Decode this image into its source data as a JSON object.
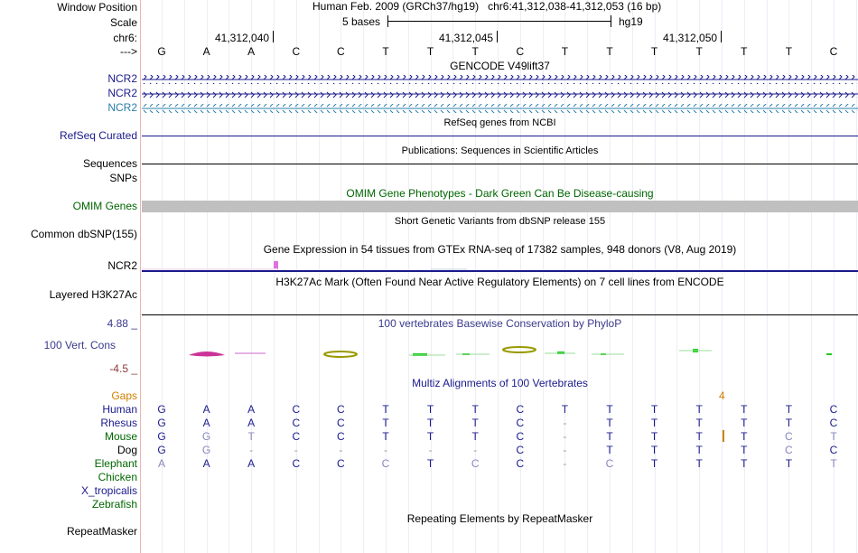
{
  "labels": {
    "window_position": "Window Position",
    "scale": "Scale",
    "chrom": "chr6:",
    "strand": "--->",
    "ncr2": "NCR2",
    "refseq_curated": "RefSeq Curated",
    "sequences": "Sequences",
    "snps": "SNPs",
    "omim_genes": "OMIM Genes",
    "common_dbsnp": "Common dbSNP(155)",
    "layered_h3k27ac": "Layered H3K27Ac",
    "phylop_max": "4.88 _",
    "vert_cons": "100 Vert. Cons",
    "phylop_min": "-4.5 _",
    "gaps": "Gaps",
    "repeatmasker": "RepeatMasker"
  },
  "header": {
    "assembly": "Human Feb. 2009 (GRCh37/hg19)",
    "position": "chr6:41,312,038-41,312,053 (16 bp)",
    "scale_text": "5 bases",
    "scale_db": "hg19",
    "ruler_ticks": [
      "41,312,040",
      "41,312,045",
      "41,312,050"
    ]
  },
  "sequence": [
    "G",
    "A",
    "A",
    "C",
    "C",
    "T",
    "T",
    "T",
    "C",
    "T",
    "T",
    "T",
    "T",
    "T",
    "T",
    "C"
  ],
  "track_titles": {
    "gencode": "GENCODE V49lift37",
    "refseq": "RefSeq genes from NCBI",
    "publications": "Publications: Sequences in Scientific Articles",
    "omim": "OMIM Gene Phenotypes - Dark Green Can Be Disease-causing",
    "dbsnp": "Short Genetic Variants from dbSNP release 155",
    "gtex": "Gene Expression in 54 tissues from GTEx RNA-seq of 17382 samples, 948 donors (V8, Aug 2019)",
    "h3k27ac": "H3K27Ac Mark (Often Found Near Active Regulatory Elements) on 7 cell lines from ENCODE",
    "phylop": "100 vertebrates Basewise Conservation by PhyloP",
    "multiz": "Multiz Alignments of 100 Vertebrates",
    "repeatmasker": "Repeating Elements by RepeatMasker"
  },
  "gaps_marker": "4",
  "species": [
    {
      "name": "Human",
      "bases": [
        "G",
        "A",
        "A",
        "C",
        "C",
        "T",
        "T",
        "T",
        "C",
        "T",
        "T",
        "T",
        "T",
        "T",
        "T",
        "C"
      ]
    },
    {
      "name": "Rhesus",
      "bases": [
        "G",
        "A",
        "A",
        "C",
        "C",
        "T",
        "T",
        "T",
        "C",
        "-",
        "T",
        "T",
        "T",
        "T",
        "T",
        "C"
      ]
    },
    {
      "name": "Mouse",
      "bases": [
        "G",
        "G",
        "T",
        "C",
        "C",
        "T",
        "T",
        "T",
        "C",
        "-",
        "T",
        "T",
        "T",
        "T",
        "C",
        "T"
      ]
    },
    {
      "name": "Dog",
      "bases": [
        "G",
        "G",
        "-",
        "-",
        "-",
        "-",
        "-",
        "-",
        "C",
        "-",
        "T",
        "T",
        "T",
        "T",
        "C",
        "C"
      ]
    },
    {
      "name": "Elephant",
      "bases": [
        "A",
        "A",
        "A",
        "C",
        "C",
        "C",
        "T",
        "C",
        "C",
        "-",
        "C",
        "T",
        "T",
        "T",
        "T",
        "T"
      ]
    },
    {
      "name": "Chicken",
      "bases": []
    },
    {
      "name": "X_tropicalis",
      "bases": []
    },
    {
      "name": "Zebrafish",
      "bases": []
    }
  ],
  "colors": {
    "blue_label": "#1a1a8c",
    "ncr2_teal": "#2a7fa8",
    "omim_green": "#006600",
    "omim_bar": "#c0c0c0",
    "gaps_orange": "#d08000",
    "phylop_blue": "#3a3a8c",
    "phylop_red": "#8c3a3a",
    "olive": "#999900",
    "cons_green": "#22cc22",
    "pink": "#cc3399",
    "mismatch": "#8888bb"
  }
}
